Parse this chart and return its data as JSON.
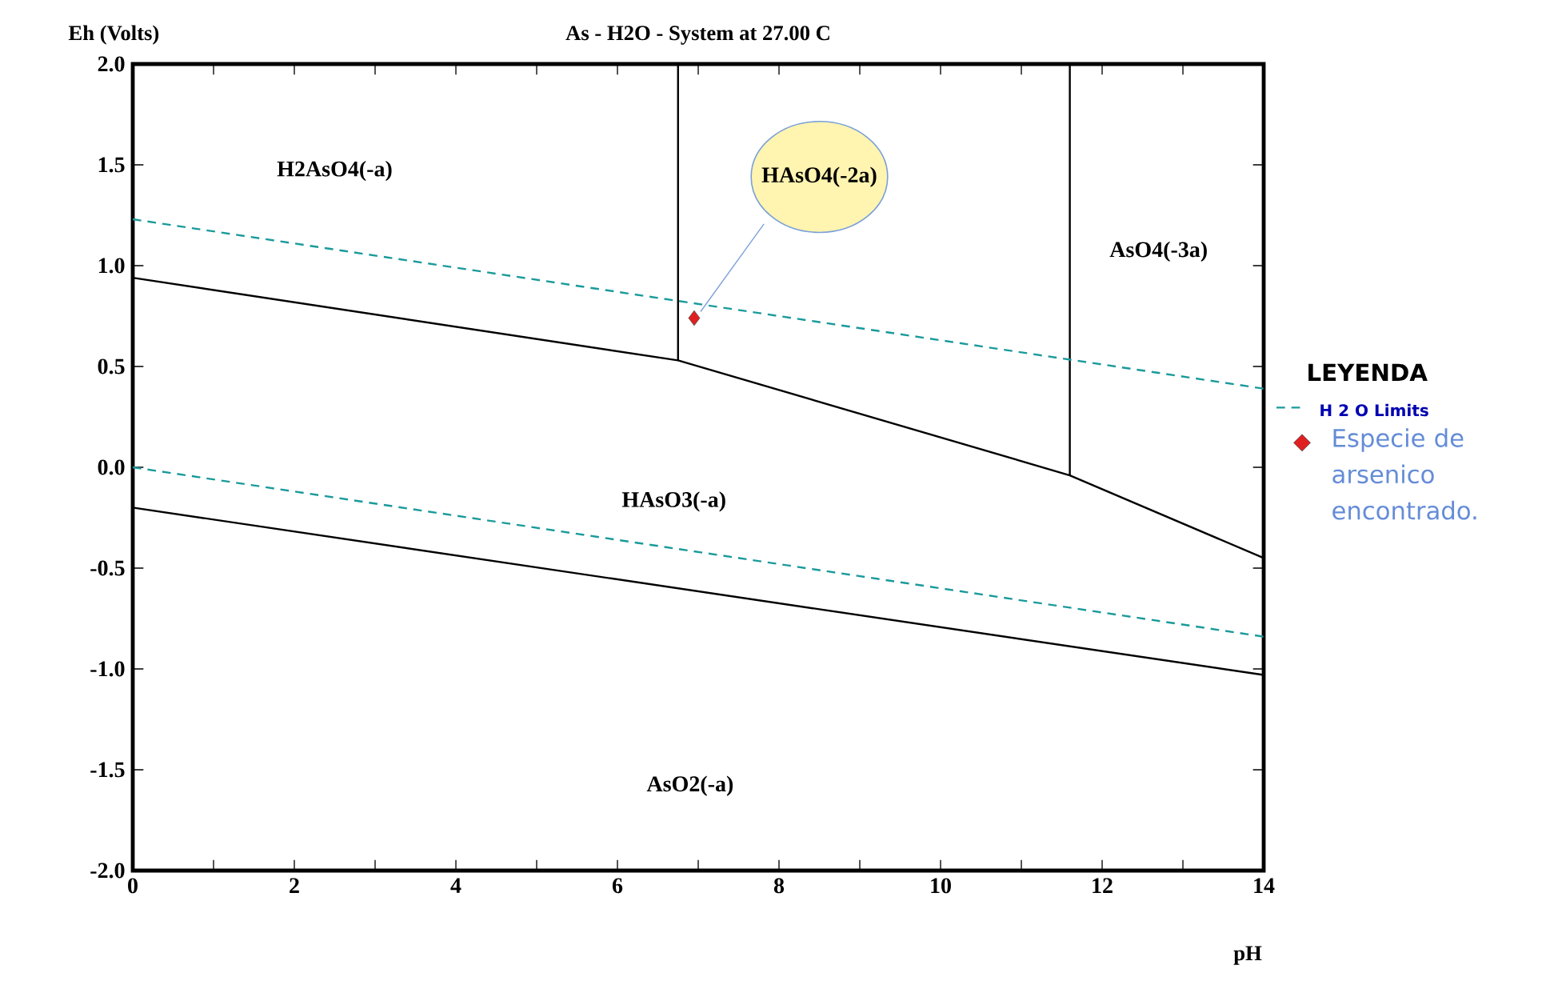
{
  "chart_data": {
    "type": "line",
    "title": "As - H2O - System at 27.00 C",
    "xlabel": "pH",
    "ylabel": "Eh (Volts)",
    "legend_title": "LEYENDA",
    "legend": "right",
    "xlim": [
      0,
      14
    ],
    "ylim": [
      -2,
      2
    ],
    "xticks": [
      0,
      2,
      4,
      6,
      8,
      10,
      12,
      14
    ],
    "yticks": [
      {
        "value": -2,
        "label": "-2.0"
      },
      -1.5,
      {
        "value": -1,
        "label": "-1.0"
      },
      -0.5,
      {
        "value": 0,
        "label": "0.0"
      },
      0.5,
      {
        "value": 1,
        "label": "1.0"
      },
      1.5,
      {
        "value": 2,
        "label": "2.0"
      }
    ],
    "series": [
      {
        "color": "#000000",
        "line_style": "solid",
        "marker": "none",
        "x": [
          0,
          6.75,
          11.6,
          14
        ],
        "values": [
          0.94,
          0.53,
          -0.04,
          -0.45
        ]
      },
      {
        "color": "#000000",
        "line_style": "solid",
        "marker": "none",
        "x": [
          6.75,
          6.75
        ],
        "values": [
          0.53,
          2.0
        ]
      },
      {
        "color": "#000000",
        "line_style": "solid",
        "marker": "none",
        "x": [
          11.6,
          11.6
        ],
        "values": [
          -0.04,
          2.0
        ]
      },
      {
        "color": "#000000",
        "line_style": "solid",
        "marker": "none",
        "x": [
          0,
          14
        ],
        "values": [
          -0.2,
          -1.03
        ]
      },
      {
        "name": "H 2 O Limits",
        "color": "#1a9a9a",
        "line_style": "dashed",
        "marker": "none",
        "x": [
          0,
          14
        ],
        "values": [
          1.23,
          0.39
        ]
      },
      {
        "color": "#1a9a9a",
        "line_style": "dashed",
        "marker": "none",
        "x": [
          0,
          14
        ],
        "values": [
          0,
          -0.84
        ]
      },
      {
        "type": "scatter",
        "name": "Especie de arsenico encontrado.",
        "color": "#e02020",
        "marker": "diamond",
        "x": [
          6.95
        ],
        "values": [
          0.74
        ]
      }
    ],
    "annotations": [
      "H2AsO4(-a)",
      "HAsO4(-2a)",
      "AsO4(-3a)",
      "HAsO3(-a)",
      "AsO2(-a)"
    ]
  }
}
